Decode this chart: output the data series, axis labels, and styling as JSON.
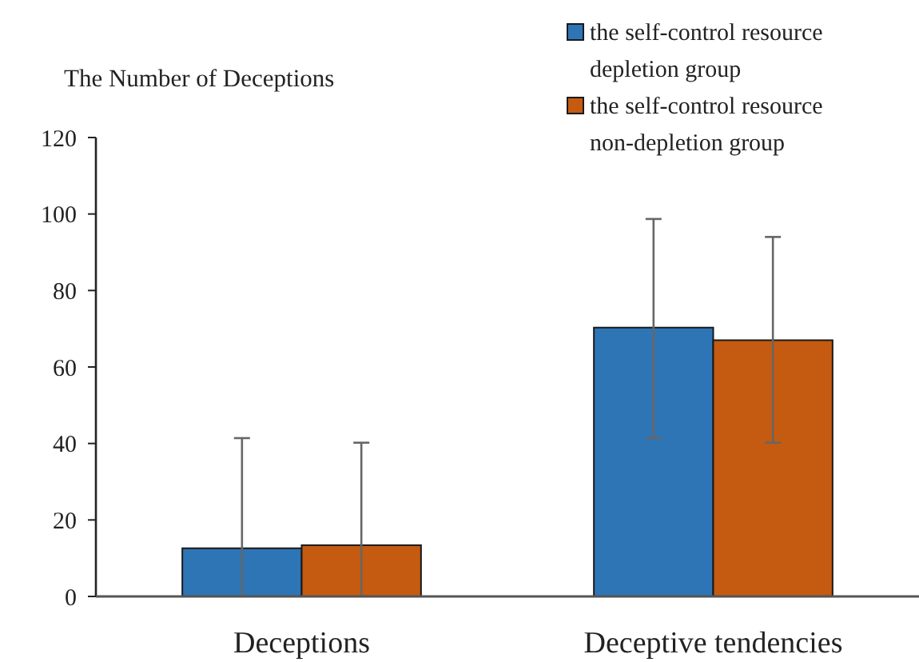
{
  "chart_data": {
    "type": "bar",
    "ylabel": "The Number of Deceptions",
    "categories": [
      "Deceptions",
      "Deceptive tendencies"
    ],
    "series": [
      {
        "name": "the self-control resource depletion group",
        "color": "#2e75b6",
        "values": [
          12.6,
          70.3
        ],
        "errors": [
          [
            0,
            41.4
          ],
          [
            41.4,
            98.7
          ]
        ]
      },
      {
        "name": "the self-control resource non-depletion group",
        "color": "#c55a11",
        "values": [
          13.4,
          67
        ],
        "errors": [
          [
            0,
            40.2
          ],
          [
            40.2,
            94
          ]
        ]
      }
    ],
    "ylim": [
      0,
      120
    ],
    "yticks": [
      0,
      20,
      40,
      60,
      80,
      100,
      120
    ],
    "grid": false,
    "legend": "top right"
  }
}
